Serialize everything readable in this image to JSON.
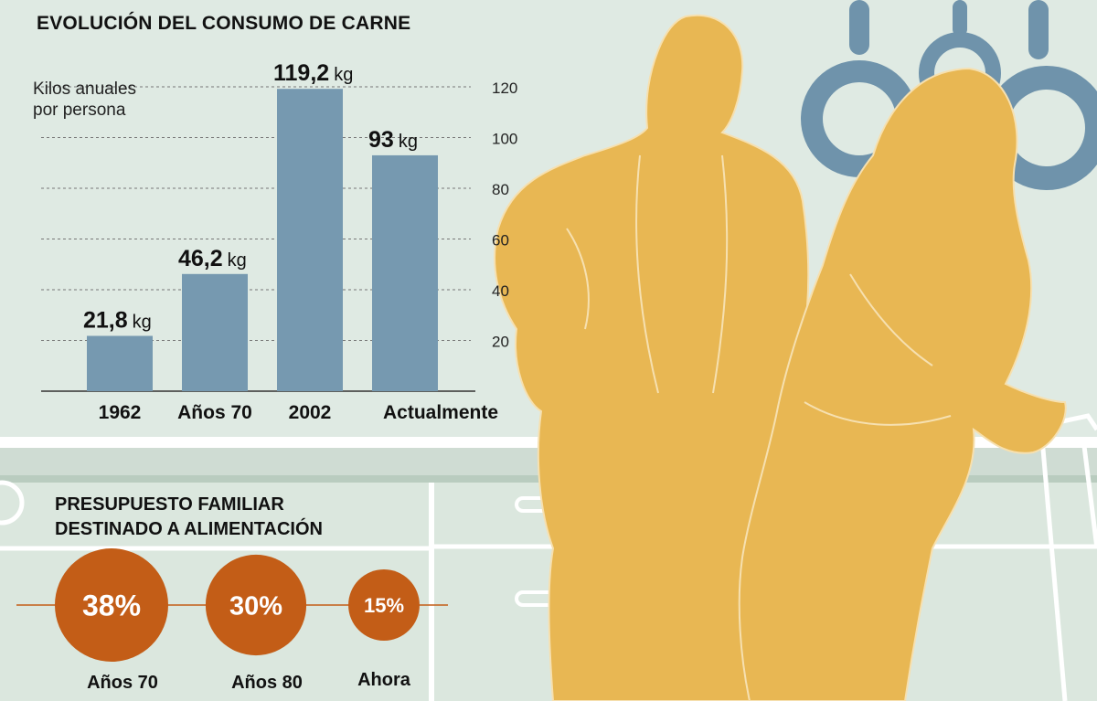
{
  "chart_data": [
    {
      "type": "bar",
      "title": "EVOLUCIÓN DEL CONSUMO DE CARNE",
      "ylabel": "Kilos anuales por persona",
      "ylabel_lines": [
        "Kilos anuales",
        "por persona"
      ],
      "categories": [
        "1962",
        "Años 70",
        "2002",
        "Actualmente"
      ],
      "values": [
        21.8,
        46.2,
        119.2,
        93
      ],
      "value_labels": [
        "21,8",
        "46,2",
        "119,2",
        "93"
      ],
      "unit": "kg",
      "yticks": [
        20,
        40,
        60,
        80,
        100,
        120
      ],
      "ylim": [
        0,
        120
      ],
      "grid": true,
      "color": "#7699b0"
    },
    {
      "type": "bubble",
      "title": "PRESUPUESTO FAMILIAR DESTINADO A ALIMENTACIÓN",
      "title_lines": [
        "PRESUPUESTO FAMILIAR",
        "DESTINADO A ALIMENTACIÓN"
      ],
      "categories": [
        "Años 70",
        "Años 80",
        "Ahora"
      ],
      "values": [
        38,
        30,
        15
      ],
      "value_labels": [
        "38%",
        "30%",
        "15%"
      ],
      "color": "#c35d17"
    }
  ],
  "colors": {
    "background": "#dfeae3",
    "silhouette": "#e8b753",
    "pans": "#6f93ab",
    "bar": "#7699b0",
    "circle": "#c35d17"
  }
}
